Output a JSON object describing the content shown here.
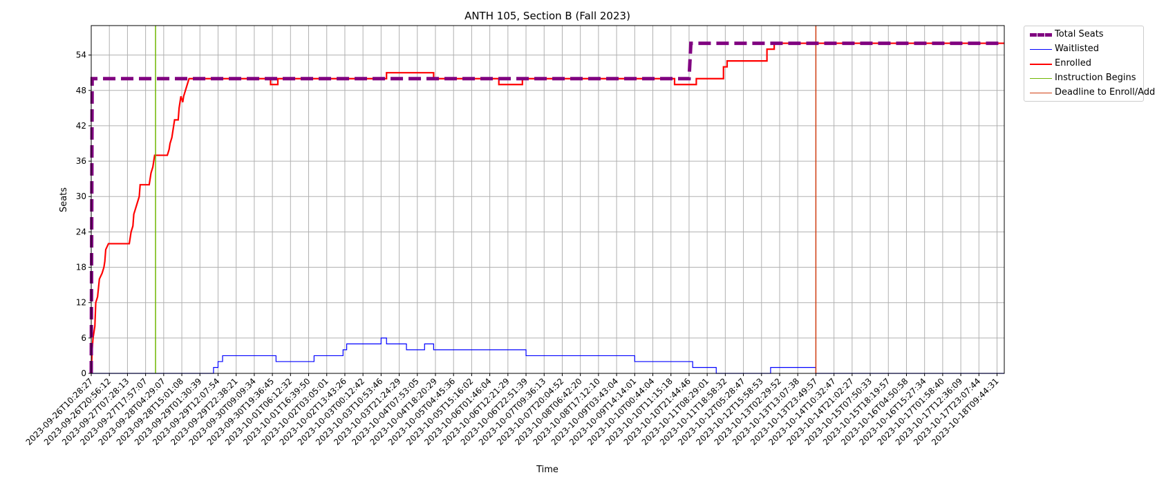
{
  "chart_data": {
    "type": "line",
    "title": "ANTH 105, Section B (Fall 2023)",
    "xlabel": "Time",
    "ylabel": "Seats",
    "ylim": [
      0,
      59
    ],
    "yticks": [
      0,
      6,
      12,
      18,
      24,
      30,
      36,
      42,
      48,
      54
    ],
    "grid": true,
    "legend_position": "outside-top-right",
    "x_tick_labels": [
      "2023-09-26T10:28:27",
      "2023-09-26T20:56:12",
      "2023-09-27T07:28:13",
      "2023-09-27T17:57:07",
      "2023-09-28T04:29:07",
      "2023-09-28T15:01:08",
      "2023-09-29T01:30:39",
      "2023-09-29T12:07:54",
      "2023-09-29T22:38:21",
      "2023-09-30T09:09:34",
      "2023-09-30T19:36:45",
      "2023-10-01T06:12:32",
      "2023-10-01T16:39:50",
      "2023-10-02T03:05:01",
      "2023-10-02T13:43:26",
      "2023-10-03T00:12:42",
      "2023-10-03T10:53:46",
      "2023-10-03T21:24:29",
      "2023-10-04T07:53:05",
      "2023-10-04T18:20:29",
      "2023-10-05T04:45:36",
      "2023-10-05T15:16:02",
      "2023-10-06T01:46:04",
      "2023-10-06T12:21:29",
      "2023-10-06T22:51:39",
      "2023-10-07T09:36:13",
      "2023-10-07T20:04:52",
      "2023-10-08T06:42:20",
      "2023-10-08T17:12:10",
      "2023-10-09T03:43:04",
      "2023-10-09T14:14:01",
      "2023-10-10T00:44:04",
      "2023-10-10T11:15:18",
      "2023-10-10T21:44:46",
      "2023-10-11T08:29:01",
      "2023-10-11T18:58:32",
      "2023-10-12T05:28:47",
      "2023-10-12T15:58:53",
      "2023-10-13T02:29:52",
      "2023-10-13T13:07:38",
      "2023-10-13T23:49:57",
      "2023-10-14T10:32:47",
      "2023-10-14T21:02:27",
      "2023-10-15T07:50:33",
      "2023-10-15T18:19:57",
      "2023-10-16T04:50:58",
      "2023-10-16T15:27:34",
      "2023-10-17T01:58:40",
      "2023-10-17T12:36:09",
      "2023-10-17T23:07:44",
      "2023-10-18T09:44:31"
    ],
    "series": [
      {
        "name": "Total Seats",
        "color": "#800080",
        "style": "dashed-thick",
        "points": [
          [
            0,
            0
          ],
          [
            0.05,
            50
          ],
          [
            33.0,
            50
          ],
          [
            33.1,
            56
          ],
          [
            50.4,
            56
          ]
        ]
      },
      {
        "name": "Waitlisted",
        "color": "#0000ff",
        "style": "thin",
        "points": [
          [
            0,
            0
          ],
          [
            6.75,
            0
          ],
          [
            6.75,
            1
          ],
          [
            7.0,
            1
          ],
          [
            7.0,
            2
          ],
          [
            7.25,
            2
          ],
          [
            7.25,
            3
          ],
          [
            10.2,
            3
          ],
          [
            10.2,
            2
          ],
          [
            12.3,
            2
          ],
          [
            12.3,
            3
          ],
          [
            13.9,
            3
          ],
          [
            13.9,
            4
          ],
          [
            14.1,
            4
          ],
          [
            14.1,
            5
          ],
          [
            16.0,
            5
          ],
          [
            16.0,
            6
          ],
          [
            16.3,
            6
          ],
          [
            16.3,
            5
          ],
          [
            17.4,
            5
          ],
          [
            17.4,
            4
          ],
          [
            18.4,
            4
          ],
          [
            18.4,
            5
          ],
          [
            18.9,
            5
          ],
          [
            18.9,
            4
          ],
          [
            24.0,
            4
          ],
          [
            24.0,
            3
          ],
          [
            30.0,
            3
          ],
          [
            30.0,
            2
          ],
          [
            33.2,
            2
          ],
          [
            33.2,
            1
          ],
          [
            34.5,
            1
          ],
          [
            34.5,
            0
          ],
          [
            37.5,
            0
          ],
          [
            37.5,
            1
          ],
          [
            40.0,
            1
          ],
          [
            40.0,
            0
          ],
          [
            50.4,
            0
          ]
        ]
      },
      {
        "name": "Enrolled",
        "color": "#ff0000",
        "style": "solid",
        "points": [
          [
            0,
            0
          ],
          [
            0.05,
            4
          ],
          [
            0.1,
            6
          ],
          [
            0.2,
            8
          ],
          [
            0.25,
            12
          ],
          [
            0.35,
            13
          ],
          [
            0.45,
            16
          ],
          [
            0.6,
            17
          ],
          [
            0.7,
            18
          ],
          [
            0.75,
            19
          ],
          [
            0.8,
            21
          ],
          [
            0.95,
            22
          ],
          [
            2.1,
            22
          ],
          [
            2.2,
            24
          ],
          [
            2.3,
            25
          ],
          [
            2.35,
            27
          ],
          [
            2.45,
            28
          ],
          [
            2.55,
            29
          ],
          [
            2.65,
            30
          ],
          [
            2.7,
            32
          ],
          [
            3.2,
            32
          ],
          [
            3.3,
            34
          ],
          [
            3.4,
            35
          ],
          [
            3.45,
            36
          ],
          [
            3.5,
            37
          ],
          [
            4.2,
            37
          ],
          [
            4.3,
            38
          ],
          [
            4.35,
            39
          ],
          [
            4.45,
            40
          ],
          [
            4.5,
            41
          ],
          [
            4.55,
            42
          ],
          [
            4.6,
            43
          ],
          [
            4.8,
            43
          ],
          [
            4.85,
            45
          ],
          [
            4.9,
            46
          ],
          [
            4.95,
            47
          ],
          [
            5.05,
            46
          ],
          [
            5.1,
            47
          ],
          [
            5.2,
            48
          ],
          [
            5.3,
            49
          ],
          [
            5.4,
            50
          ],
          [
            9.9,
            50
          ],
          [
            9.9,
            49
          ],
          [
            10.3,
            49
          ],
          [
            10.3,
            50
          ],
          [
            16.3,
            50
          ],
          [
            16.3,
            51
          ],
          [
            18.9,
            51
          ],
          [
            18.9,
            50
          ],
          [
            22.5,
            50
          ],
          [
            22.5,
            49
          ],
          [
            23.8,
            49
          ],
          [
            23.8,
            50
          ],
          [
            32.2,
            50
          ],
          [
            32.2,
            49
          ],
          [
            33.4,
            49
          ],
          [
            33.4,
            50
          ],
          [
            34.9,
            50
          ],
          [
            34.9,
            52
          ],
          [
            35.1,
            52
          ],
          [
            35.1,
            53
          ],
          [
            37.3,
            53
          ],
          [
            37.3,
            55
          ],
          [
            37.7,
            55
          ],
          [
            37.7,
            56
          ],
          [
            50.4,
            56
          ]
        ]
      },
      {
        "name": "Instruction Begins",
        "color": "#6fb600",
        "style": "vline",
        "x": 3.55
      },
      {
        "name": "Deadline to Enroll/Add",
        "color": "#d03c10",
        "style": "vline",
        "x": 40.0
      }
    ]
  }
}
